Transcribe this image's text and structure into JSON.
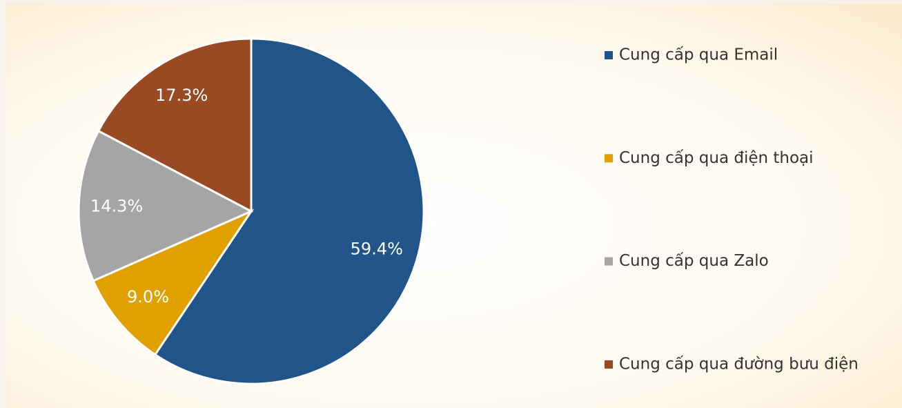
{
  "chart_data": {
    "type": "pie",
    "categories": [
      "Cung cấp qua Email",
      "Cung cấp qua điện thoại",
      "Cung cấp qua Zalo",
      "Cung cấp qua đường bưu điện"
    ],
    "values": [
      59.4,
      9.0,
      14.3,
      17.3
    ],
    "value_labels": [
      "59.4%",
      "9.0%",
      "14.3%",
      "17.3%"
    ],
    "colors": [
      "#215589",
      "#e0a100",
      "#a5a5a5",
      "#9a4a22"
    ],
    "legend": "right"
  }
}
